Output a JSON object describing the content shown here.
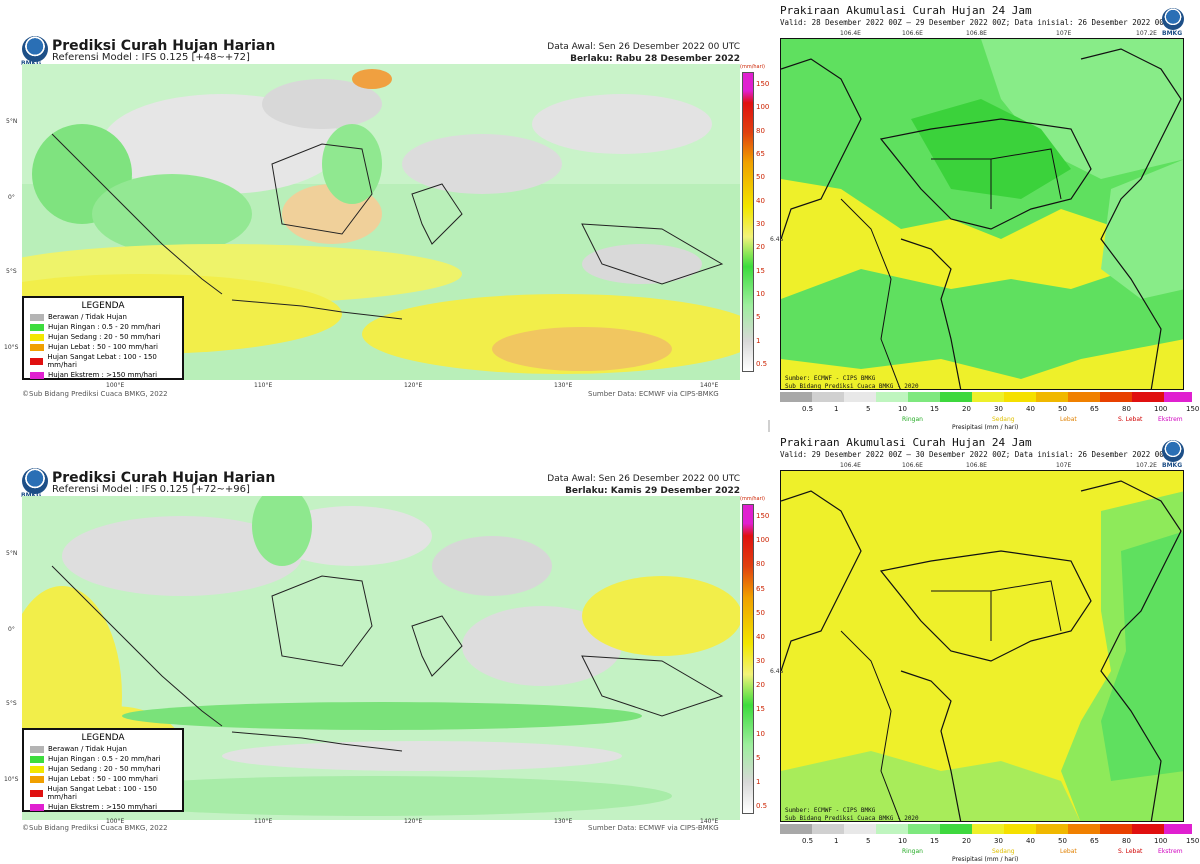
{
  "left_panels": [
    {
      "title": "Prediksi Curah Hujan Harian",
      "model": "Referensi Model : IFS 0.125 [+48~+72]",
      "data_awal": "Data Awal: Sen 26 Desember 2022 00 UTC",
      "berlaku": "Berlaku: Rabu 28 Desember 2022"
    },
    {
      "title": "Prediksi Curah Hujan Harian",
      "model": "Referensi Model : IFS 0.125 [+72~+96]",
      "data_awal": "Data Awal: Sen 26 Desember 2022 00 UTC",
      "berlaku": "Berlaku: Kamis 29 Desember 2022"
    }
  ],
  "logo_text": "BMKG",
  "lat_labels": [
    "5°N",
    "0°",
    "5°S",
    "10°S"
  ],
  "lon_labels": [
    "100°E",
    "110°E",
    "120°E",
    "130°E",
    "140°E"
  ],
  "colorbar_unit": "(mm/hari)",
  "colorbar_ticks": [
    "150",
    "100",
    "80",
    "65",
    "50",
    "40",
    "30",
    "20",
    "15",
    "10",
    "5",
    "1",
    "0.5"
  ],
  "legend": {
    "title": "LEGENDA",
    "items": [
      {
        "label": "Berawan / Tidak Hujan",
        "color": "#b4b4b4"
      },
      {
        "label": "Hujan Ringan : 0.5 - 20 mm/hari",
        "color": "#3ddc3d"
      },
      {
        "label": "Hujan Sedang : 20 - 50 mm/hari",
        "color": "#f2e600"
      },
      {
        "label": "Hujan Lebat : 50 - 100 mm/hari",
        "color": "#f0a000"
      },
      {
        "label": "Hujan Sangat Lebat : 100 - 150 mm/hari",
        "color": "#e01010"
      },
      {
        "label": "Hujan Ekstrem : >150 mm/hari",
        "color": "#e020d0"
      }
    ]
  },
  "footer_left": "©Sub Bidang Prediksi Cuaca BMKG, 2022",
  "footer_right": "Sumber Data: ECMWF via CIPS-BMKG",
  "right_panels": [
    {
      "title": "Prakiraan Akumulasi Curah Hujan 24 Jam",
      "valid": "Valid: 28 Desember 2022 00Z – 29 Desember 2022 00Z; Data inisial: 26 Desember 2022 00Z"
    },
    {
      "title": "Prakiraan Akumulasi Curah Hujan 24 Jam",
      "valid": "Valid: 29 Desember 2022 00Z – 30 Desember 2022 00Z; Data inisial: 26 Desember 2022 00Z"
    }
  ],
  "right_top_lons": [
    "106.4E",
    "106.6E",
    "106.8E",
    "107E",
    "107.2E"
  ],
  "right_source": "Sumber: ECMWF - CIPS BMKG",
  "right_source2": "Sub Bidang Prediksi Cuaca BMKG - 2020",
  "right_lat": "6.4S",
  "right_cb_ticks": [
    "0.5",
    "1",
    "5",
    "10",
    "15",
    "20",
    "30",
    "40",
    "50",
    "65",
    "80",
    "100",
    "150"
  ],
  "right_categories": [
    {
      "label": "Ringan",
      "color": "#22aa22"
    },
    {
      "label": "Sedang",
      "color": "#e0c000"
    },
    {
      "label": "Lebat",
      "color": "#e08000"
    },
    {
      "label": "S. Lebat",
      "color": "#d00000"
    },
    {
      "label": "Ekstrem",
      "color": "#d000c0"
    }
  ],
  "right_axis_label": "Presipitasi (mm / hari)"
}
